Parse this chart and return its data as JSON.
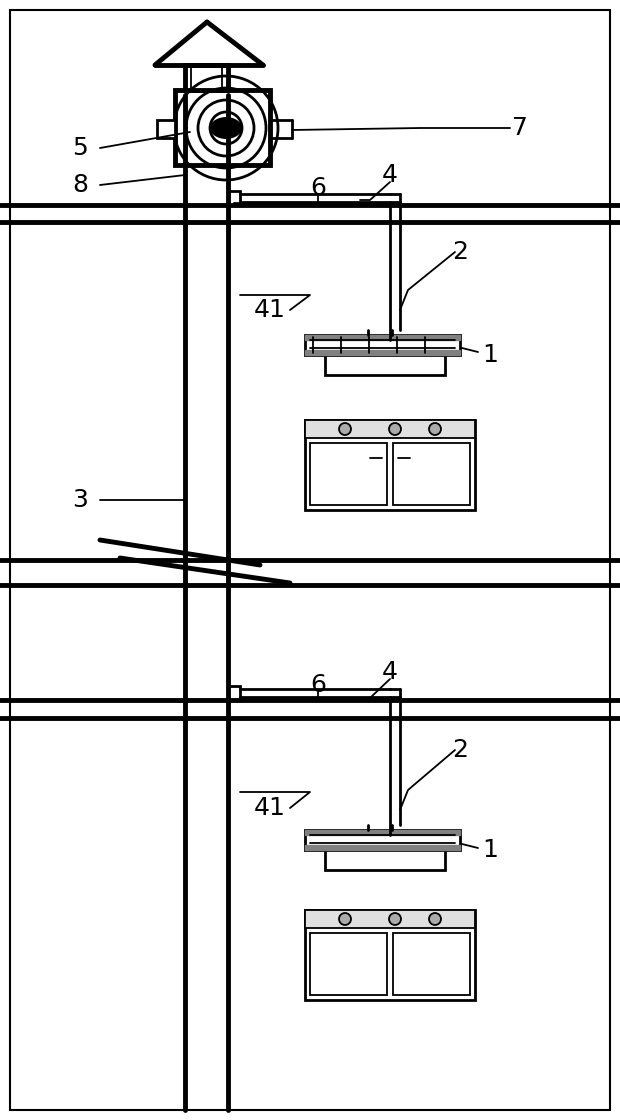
{
  "bg_color": "#ffffff",
  "line_color": "#000000",
  "lw_thick": 3.0,
  "lw_medium": 2.0,
  "lw_thin": 1.3,
  "fig_width": 6.2,
  "fig_height": 11.2,
  "dpi": 100
}
